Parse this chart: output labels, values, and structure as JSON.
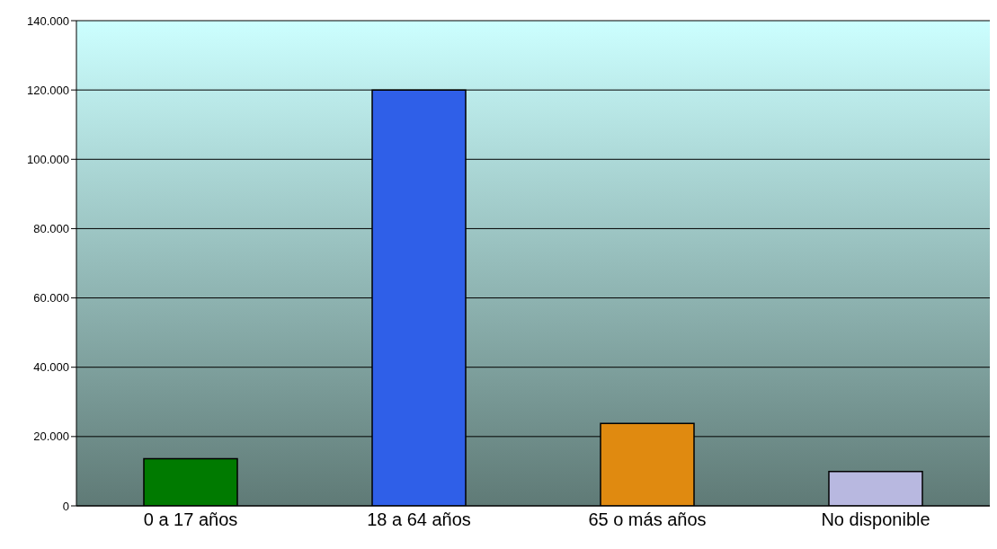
{
  "chart_data": {
    "type": "bar",
    "categories": [
      "0 a 17 años",
      "18 a 64 años",
      "65 o más años",
      "No disponible"
    ],
    "values": [
      13600,
      120000,
      23800,
      9900
    ],
    "colors": [
      "#007a00",
      "#2f5fe8",
      "#e08a10",
      "#b8b8e0"
    ],
    "ylim": [
      0,
      140000
    ],
    "yticks": [
      {
        "value": 0,
        "label": "0"
      },
      {
        "value": 20000,
        "label": "20.000"
      },
      {
        "value": 40000,
        "label": "40.000"
      },
      {
        "value": 60000,
        "label": "60.000"
      },
      {
        "value": 80000,
        "label": "80.000"
      },
      {
        "value": 100000,
        "label": "100.000"
      },
      {
        "value": 120000,
        "label": "120.000"
      },
      {
        "value": 140000,
        "label": "140.000"
      }
    ],
    "grid": "y",
    "legend": false
  }
}
